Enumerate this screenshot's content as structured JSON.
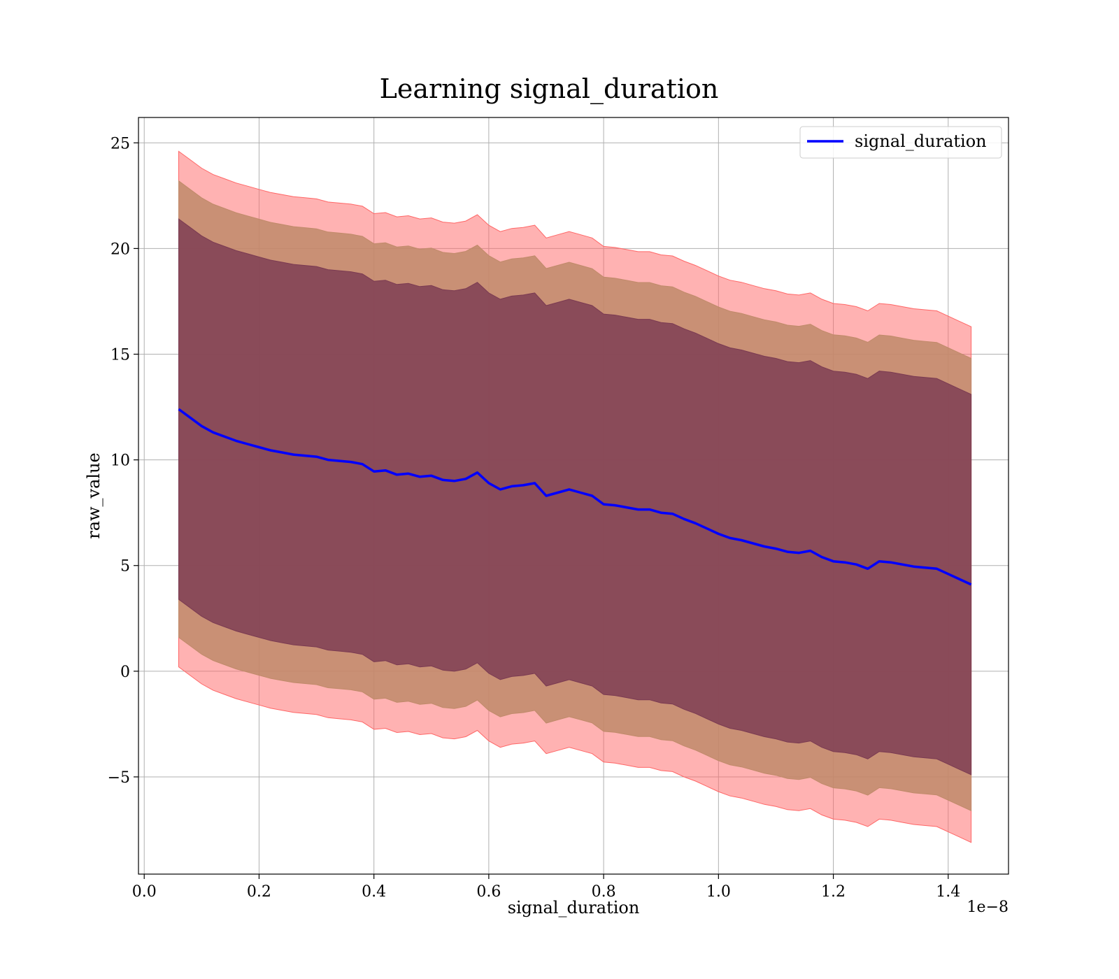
{
  "chart_data": {
    "type": "line",
    "title": "Learning signal_duration",
    "xlabel": "signal_duration",
    "ylabel": "raw_value",
    "x_offset_label": "1e−8",
    "xlim": [
      -0.01,
      1.505
    ],
    "ylim": [
      -9.6,
      26.2
    ],
    "x_ticks": [
      0.0,
      0.2,
      0.4,
      0.6,
      0.8,
      1.0,
      1.2,
      1.4
    ],
    "x_tick_labels": [
      "0.0",
      "0.2",
      "0.4",
      "0.6",
      "0.8",
      "1.0",
      "1.2",
      "1.4"
    ],
    "y_ticks": [
      -5,
      0,
      5,
      10,
      15,
      20,
      25
    ],
    "y_tick_labels": [
      "−5",
      "0",
      "5",
      "10",
      "15",
      "20",
      "25"
    ],
    "grid": true,
    "legend_position": "top-right",
    "colors": {
      "line": "#0000ff",
      "band_outer": "#ff6666",
      "band_middle": "#c08a6a",
      "band_inner": "#7a3a52"
    },
    "series": [
      {
        "name": "signal_duration",
        "x": [
          0.06,
          0.08,
          0.1,
          0.12,
          0.14,
          0.16,
          0.18,
          0.2,
          0.22,
          0.24,
          0.26,
          0.28,
          0.3,
          0.32,
          0.34,
          0.36,
          0.38,
          0.4,
          0.42,
          0.44,
          0.46,
          0.48,
          0.5,
          0.52,
          0.54,
          0.56,
          0.58,
          0.6,
          0.62,
          0.64,
          0.66,
          0.68,
          0.7,
          0.72,
          0.74,
          0.76,
          0.78,
          0.8,
          0.82,
          0.84,
          0.86,
          0.88,
          0.9,
          0.92,
          0.94,
          0.96,
          0.98,
          1.0,
          1.02,
          1.04,
          1.06,
          1.08,
          1.1,
          1.12,
          1.14,
          1.16,
          1.18,
          1.2,
          1.22,
          1.24,
          1.26,
          1.28,
          1.3,
          1.32,
          1.34,
          1.36,
          1.38,
          1.4,
          1.42,
          1.44
        ],
        "y": [
          12.4,
          12.0,
          11.6,
          11.3,
          11.1,
          10.9,
          10.75,
          10.6,
          10.45,
          10.35,
          10.25,
          10.2,
          10.15,
          10.0,
          9.95,
          9.9,
          9.8,
          9.45,
          9.5,
          9.3,
          9.35,
          9.2,
          9.25,
          9.05,
          9.0,
          9.1,
          9.4,
          8.9,
          8.6,
          8.75,
          8.8,
          8.9,
          8.3,
          8.45,
          8.6,
          8.45,
          8.3,
          7.9,
          7.85,
          7.75,
          7.65,
          7.65,
          7.5,
          7.45,
          7.2,
          7.0,
          6.75,
          6.5,
          6.3,
          6.2,
          6.05,
          5.9,
          5.8,
          5.65,
          5.6,
          5.7,
          5.4,
          5.2,
          5.15,
          5.05,
          4.85,
          5.2,
          5.15,
          5.05,
          4.95,
          4.9,
          4.85,
          4.6,
          4.35,
          4.1
        ]
      }
    ],
    "bands": [
      {
        "role": "outer",
        "spread": 12.2,
        "spread_end": 12.2
      },
      {
        "role": "middle",
        "spread": 10.8,
        "spread_end": 10.7
      },
      {
        "role": "inner",
        "spread": 9.0,
        "spread_end": 9.0
      }
    ]
  }
}
